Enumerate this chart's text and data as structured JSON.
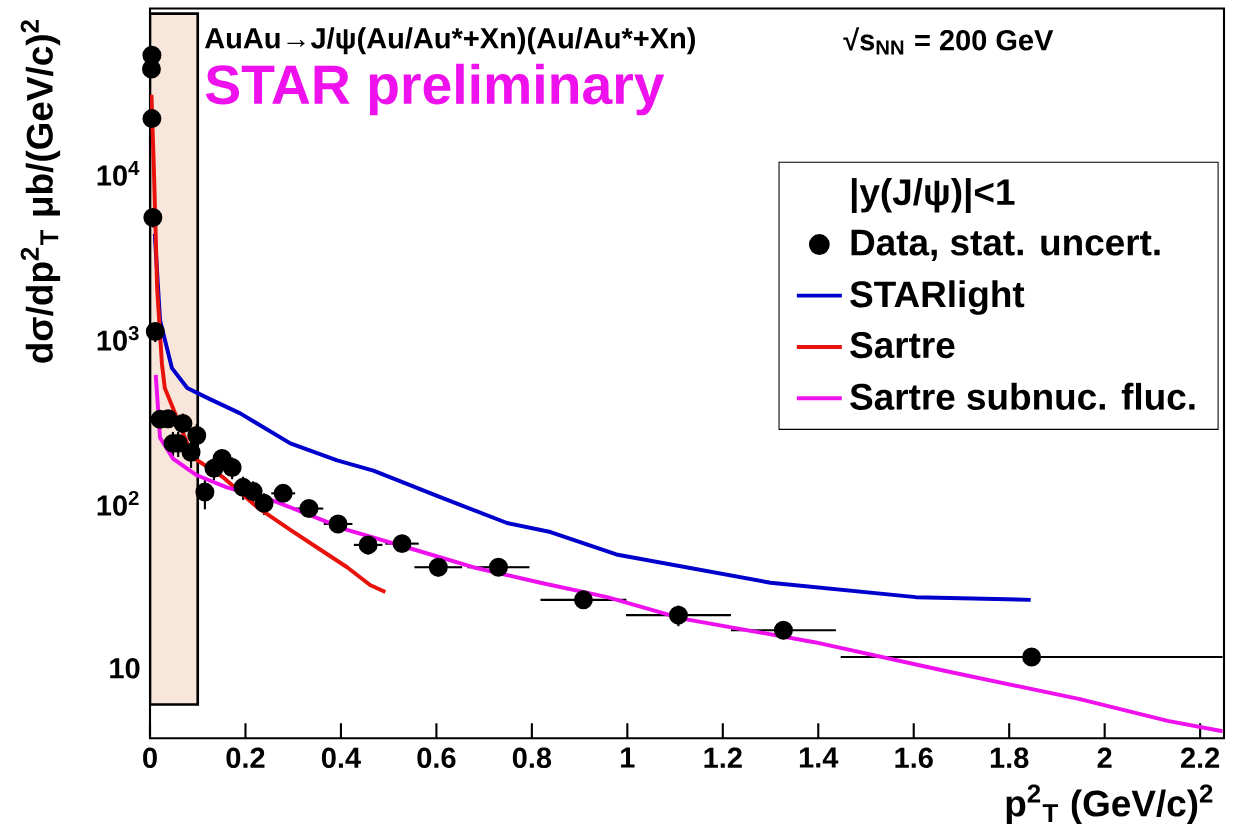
{
  "chart_data": {
    "type": "line",
    "title": "AuAu→J/ψ(Au/Au*+Xn)(Au/Au*+Xn)",
    "subtitle": "STAR preliminary",
    "annotations": [
      "√s$_{NN}$ = 200 GeV"
    ],
    "xlabel": "p$^{2}$$_{T}$ (GeV/c)$^{2}$",
    "ylabel": "dσ/dp$^{2}$$_{T}$ μb/(GeV/c)$^{2}$",
    "legend_title": "|y(J/ψ)|<1",
    "legend": "top right",
    "log": "y",
    "xlim": [
      0,
      2.25
    ],
    "ylim": [
      3.77,
      100000
    ],
    "xticks": [
      0,
      0.2,
      0.4,
      0.6,
      0.8,
      1,
      1.2,
      1.4,
      1.6,
      1.8,
      2,
      2.2
    ],
    "yticks": [
      10,
      {
        "value": 100,
        "label": "10$^{2}$"
      },
      {
        "value": 1000,
        "label": "10$^{3}$"
      },
      {
        "value": 10000,
        "label": "10$^{4}$"
      }
    ],
    "bands": [
      {
        "axis": "x",
        "from": 0,
        "to": 0.1,
        "color": "#f9e6da"
      }
    ],
    "series": [
      {
        "name": "Data, stat. uncert.",
        "type": "scatter",
        "marker": "circle",
        "color": "#000000",
        "x": [
          0.004,
          0.003,
          0.004,
          0.006,
          0.011,
          0.021,
          0.038,
          0.069,
          0.048,
          0.059,
          0.086,
          0.098,
          0.115,
          0.134,
          0.151,
          0.172,
          0.195,
          0.216,
          0.239,
          0.279,
          0.333,
          0.394,
          0.457,
          0.528,
          0.604,
          0.73,
          0.908,
          1.107,
          1.327,
          1.847
        ],
        "values": [
          52000,
          43000,
          21500,
          5400,
          1100,
          323,
          326,
          305,
          231,
          231,
          204,
          258,
          117,
          163,
          187,
          165,
          125,
          118,
          100,
          115,
          93,
          75,
          56,
          57,
          41,
          41,
          26,
          21,
          17,
          11.7
        ],
        "errors": [
          3000,
          3000,
          2500,
          700,
          150,
          40,
          40,
          45,
          40,
          40,
          40,
          45,
          25,
          25,
          25,
          25,
          20,
          18,
          15,
          12,
          10,
          8,
          7,
          6,
          5,
          4,
          3,
          3,
          2,
          1.2
        ],
        "xerrors": [
          null,
          null,
          null,
          null,
          null,
          null,
          null,
          null,
          null,
          null,
          null,
          null,
          null,
          null,
          null,
          null,
          null,
          null,
          null,
          0.025,
          0.03,
          0.03,
          0.03,
          0.035,
          0.05,
          0.065,
          0.09,
          0.11,
          0.11,
          0.4
        ]
      },
      {
        "name": "STARlight",
        "color": "#0000cc",
        "x": [
          0.01,
          0.021,
          0.046,
          0.078,
          0.12,
          0.189,
          0.294,
          0.392,
          0.468,
          0.608,
          0.748,
          0.839,
          0.977,
          1.3,
          1.604,
          1.845
        ],
        "values": [
          4300,
          1290,
          660,
          500,
          436,
          351,
          231,
          182,
          158,
          109,
          76,
          67,
          49,
          33,
          27,
          26
        ]
      },
      {
        "name": "Sartre",
        "color": "#e8120c",
        "x": [
          0.003,
          0.008,
          0.015,
          0.025,
          0.031,
          0.09,
          0.153,
          0.224,
          0.294,
          0.35,
          0.413,
          0.461,
          0.493
        ],
        "values": [
          30000,
          11000,
          2000,
          700,
          500,
          190,
          144,
          95,
          69,
          54,
          41,
          32,
          29
        ]
      },
      {
        "name": "Sartre subnuc. fluc.",
        "color": "#ee11ee",
        "x": [
          0.012,
          0.021,
          0.048,
          0.098,
          0.161,
          0.258,
          0.413,
          0.539,
          0.677,
          0.818,
          0.958,
          1.115,
          1.392,
          1.669,
          1.948,
          2.132,
          2.247
        ],
        "values": [
          600,
          250,
          187,
          148,
          125,
          104,
          69,
          54,
          41,
          33,
          27,
          20,
          14.4,
          9.6,
          6.5,
          4.8,
          4.15
        ]
      }
    ]
  }
}
